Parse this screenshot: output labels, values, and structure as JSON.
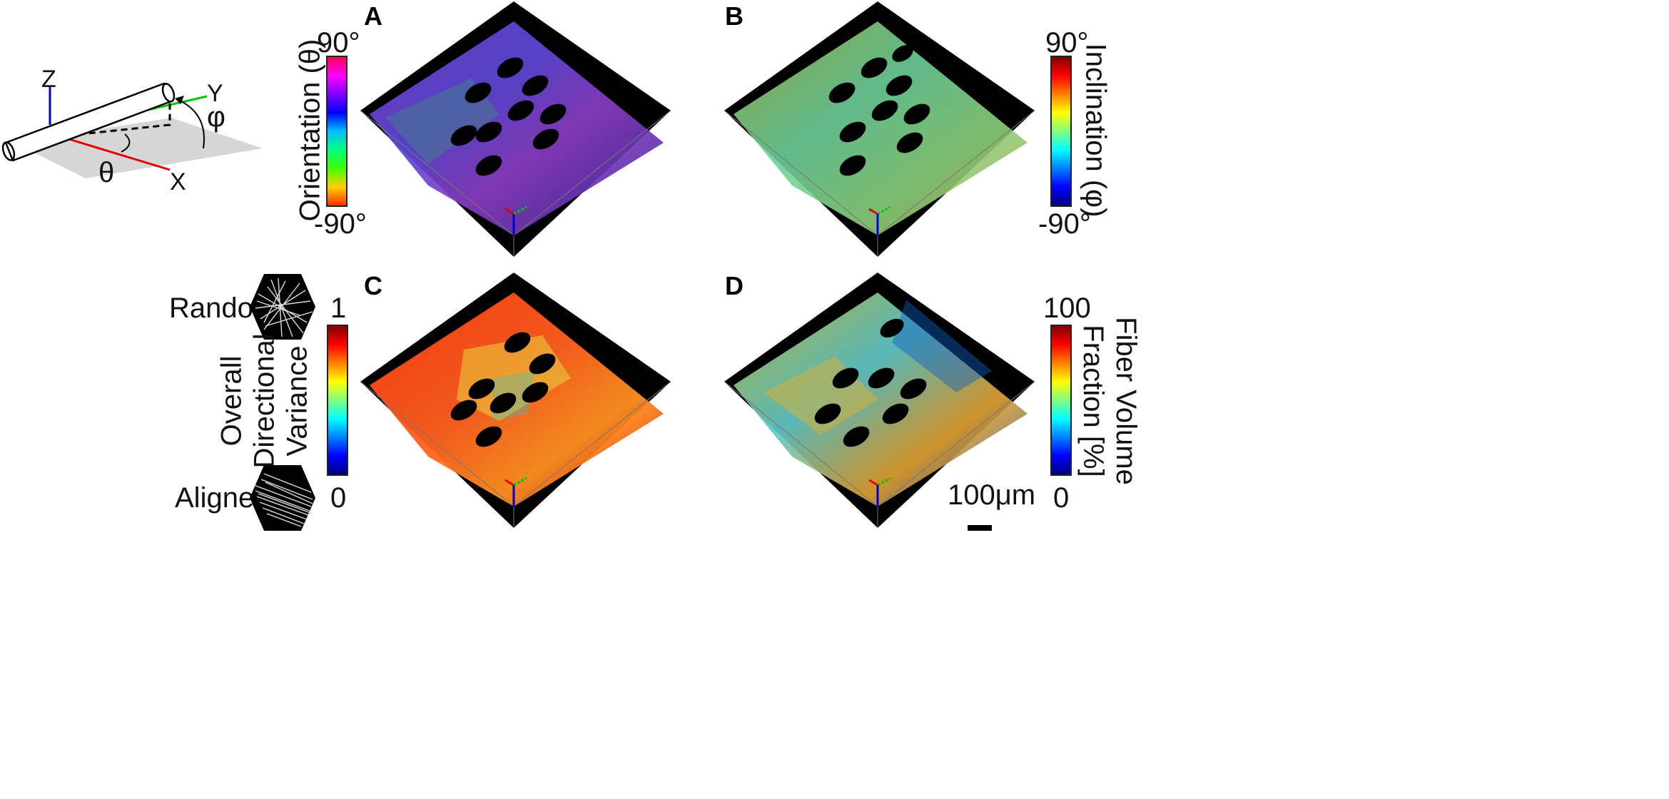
{
  "schematic": {
    "axis_z": "Z",
    "axis_y": "Y",
    "axis_x": "X",
    "theta": "θ",
    "phi": "φ"
  },
  "panels": {
    "a": {
      "letter": "A",
      "colorbar_title": "Orientation (θ)",
      "colorbar_max": "90°",
      "colorbar_min": "-90°"
    },
    "b": {
      "letter": "B",
      "colorbar_title": "Inclination  (φ)",
      "colorbar_max": "90°",
      "colorbar_min": "-90°"
    },
    "c": {
      "letter": "C",
      "colorbar_title_lines": [
        "Overall",
        "Directional",
        "Variance"
      ],
      "colorbar_max": "1",
      "colorbar_min": "0",
      "random_label": "Random",
      "aligned_label": "Aligned"
    },
    "d": {
      "letter": "D",
      "colorbar_title_lines": [
        "Fiber Volume",
        "Fraction [%]"
      ],
      "colorbar_max": "100",
      "colorbar_min": "0"
    }
  },
  "scalebar_label": "100μm",
  "colors": {
    "x_axis": "#e00000",
    "y_axis": "#00c800",
    "z_axis": "#0000cc",
    "plane": "#d6d6d6",
    "volume_bg": "#000000"
  }
}
